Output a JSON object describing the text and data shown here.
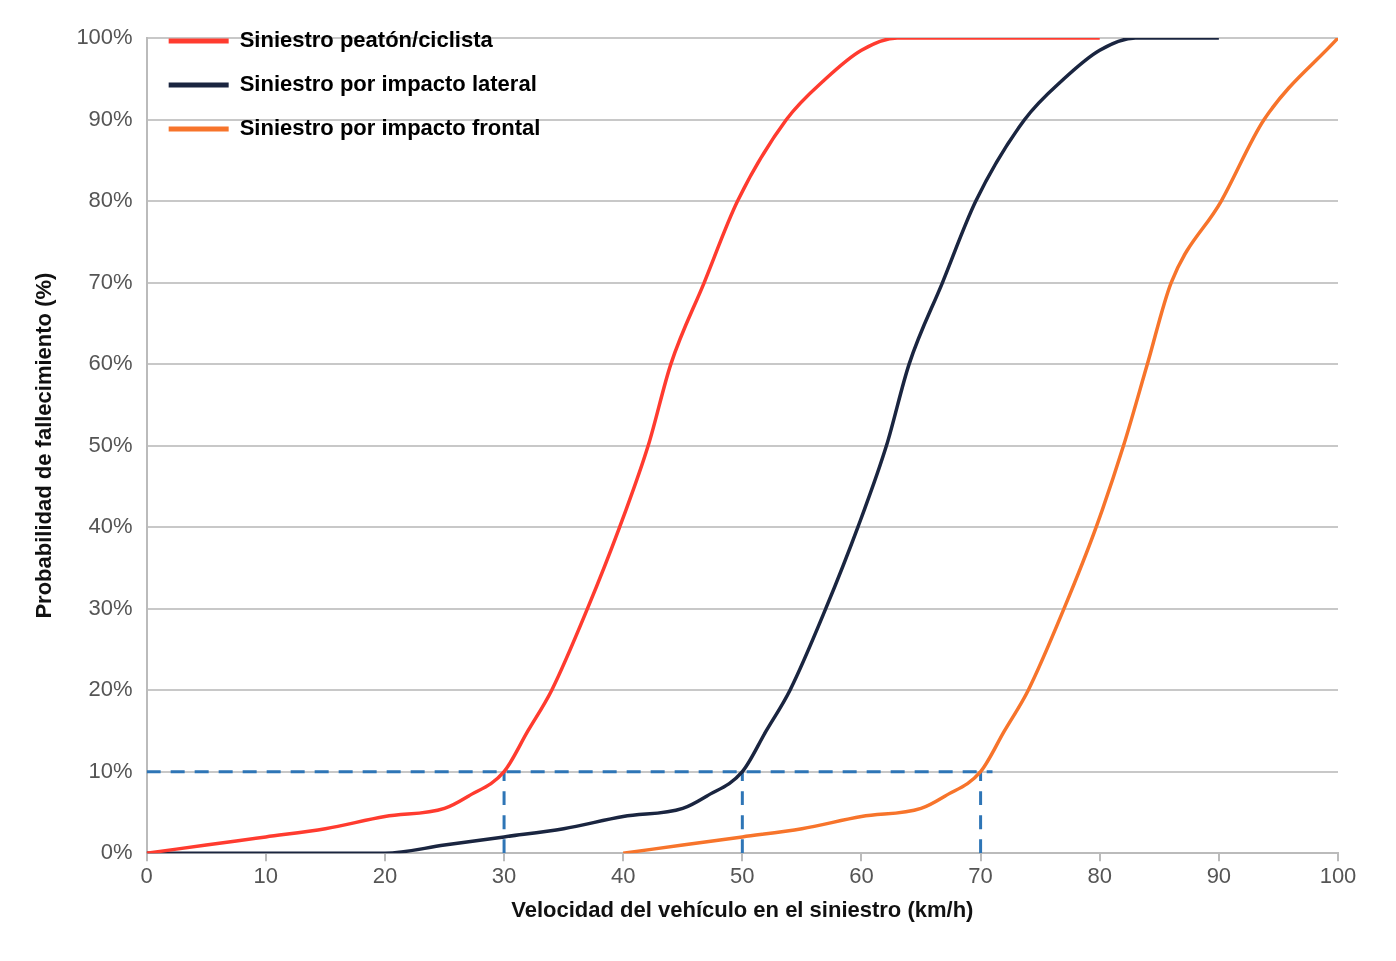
{
  "chart_data": {
    "type": "line",
    "xlabel": "Velocidad del vehículo en el siniestro (km/h)",
    "ylabel": "Probabilidad de fallecimiento (%)",
    "xlim": [
      0,
      100
    ],
    "xticks": [
      0,
      10,
      20,
      30,
      40,
      50,
      60,
      70,
      80,
      90,
      100
    ],
    "ylim": [
      0,
      100
    ],
    "yticks": [
      {
        "value": 0,
        "label": "0%"
      },
      {
        "value": 10,
        "label": "10%"
      },
      {
        "value": 20,
        "label": "20%"
      },
      {
        "value": 30,
        "label": "30%"
      },
      {
        "value": 40,
        "label": "40%"
      },
      {
        "value": 50,
        "label": "50%"
      },
      {
        "value": 60,
        "label": "60%"
      },
      {
        "value": 70,
        "label": "70%"
      },
      {
        "value": 80,
        "label": "80%"
      },
      {
        "value": 90,
        "label": "90%"
      },
      {
        "value": 100,
        "label": "100%"
      }
    ],
    "grid": "y",
    "legend": "top left",
    "marker": "none",
    "series": [
      {
        "name": "Siniestro peatón/ciclista",
        "color": "#ff3b2f",
        "x": [
          0,
          5,
          10,
          15,
          20,
          25,
          27,
          30,
          32,
          34,
          37,
          39.7,
          42.1,
          44,
          46.8,
          49.6,
          53.7,
          57,
          60,
          63,
          70,
          80
        ],
        "values": [
          0,
          1,
          2,
          3,
          4.5,
          5.5,
          7,
          10,
          15,
          20,
          30,
          40,
          50,
          60,
          70,
          80,
          90,
          95,
          98.5,
          100,
          100,
          100
        ]
      },
      {
        "name": "Siniestro por impacto lateral",
        "color": "#1a2540",
        "x": [
          0,
          10,
          20,
          25,
          30,
          35,
          40,
          45,
          47,
          50,
          52,
          54,
          57,
          59.7,
          62.1,
          64,
          66.8,
          69.6,
          73.7,
          77,
          80,
          83,
          90
        ],
        "values": [
          0,
          0,
          0,
          1,
          2,
          3,
          4.5,
          5.5,
          7,
          10,
          15,
          20,
          30,
          40,
          50,
          60,
          70,
          80,
          90,
          95,
          98.5,
          100,
          100
        ]
      },
      {
        "name": "Siniestro por impacto frontal",
        "color": "#f7742b",
        "x": [
          40,
          45,
          50,
          55,
          60,
          65,
          67,
          70,
          72,
          74,
          77,
          79.7,
          82,
          84,
          86,
          90.2,
          93.8,
          100
        ],
        "values": [
          0,
          1,
          2,
          3,
          4.5,
          5.5,
          7,
          10,
          15,
          20,
          30,
          40,
          50,
          60,
          70,
          80,
          90,
          100
        ]
      },
      {
        "color": "#2e75b6",
        "line_style": "dashed",
        "x": [
          0,
          71
        ],
        "values": [
          10,
          10
        ]
      },
      {
        "color": "#2e75b6",
        "line_style": "dashed",
        "x": [
          30,
          30
        ],
        "values": [
          0,
          10
        ]
      },
      {
        "color": "#2e75b6",
        "line_style": "dashed",
        "x": [
          50,
          50
        ],
        "values": [
          0,
          10
        ]
      },
      {
        "color": "#2e75b6",
        "line_style": "dashed",
        "x": [
          70,
          70
        ],
        "values": [
          0,
          10
        ]
      }
    ]
  }
}
